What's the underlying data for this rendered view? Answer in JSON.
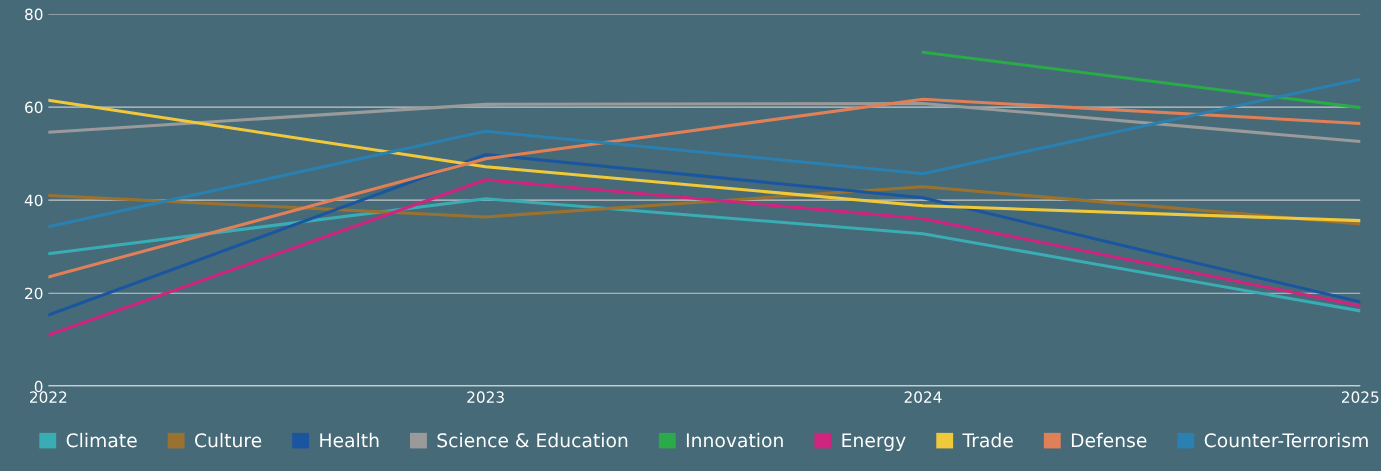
{
  "chart_data": {
    "type": "line",
    "categories": [
      "2022",
      "2023",
      "2024",
      "2025"
    ],
    "ylim": [
      0,
      80
    ],
    "yticks": [
      0,
      20,
      40,
      60,
      80
    ],
    "grid": "y",
    "legend": "bottom",
    "marker": "none",
    "line_style": "solid",
    "series": [
      {
        "name": "Climate",
        "color": "#3aacb4",
        "values": [
          28.5,
          40.3,
          32.8,
          16.2
        ]
      },
      {
        "name": "Culture",
        "color": "#9a7230",
        "values": [
          41.0,
          36.4,
          42.9,
          34.9
        ]
      },
      {
        "name": "Health",
        "color": "#1a56a0",
        "values": [
          15.3,
          49.8,
          40.5,
          18.1
        ]
      },
      {
        "name": "Science & Education",
        "color": "#9a9a9a",
        "values": [
          54.6,
          60.6,
          60.8,
          52.6
        ]
      },
      {
        "name": "Innovation",
        "color": "#2aaa48",
        "values": [
          null,
          null,
          71.8,
          59.9
        ]
      },
      {
        "name": "Energy",
        "color": "#d0257f",
        "values": [
          11.0,
          44.4,
          36.0,
          17.3
        ]
      },
      {
        "name": "Trade",
        "color": "#f0c83c",
        "values": [
          61.5,
          47.2,
          38.8,
          35.6
        ]
      },
      {
        "name": "Defense",
        "color": "#e08058",
        "values": [
          23.5,
          48.9,
          61.7,
          56.5
        ]
      },
      {
        "name": "Counter-Terrorism",
        "color": "#2a80b0",
        "values": [
          34.3,
          54.8,
          45.7,
          66.0
        ]
      }
    ]
  }
}
